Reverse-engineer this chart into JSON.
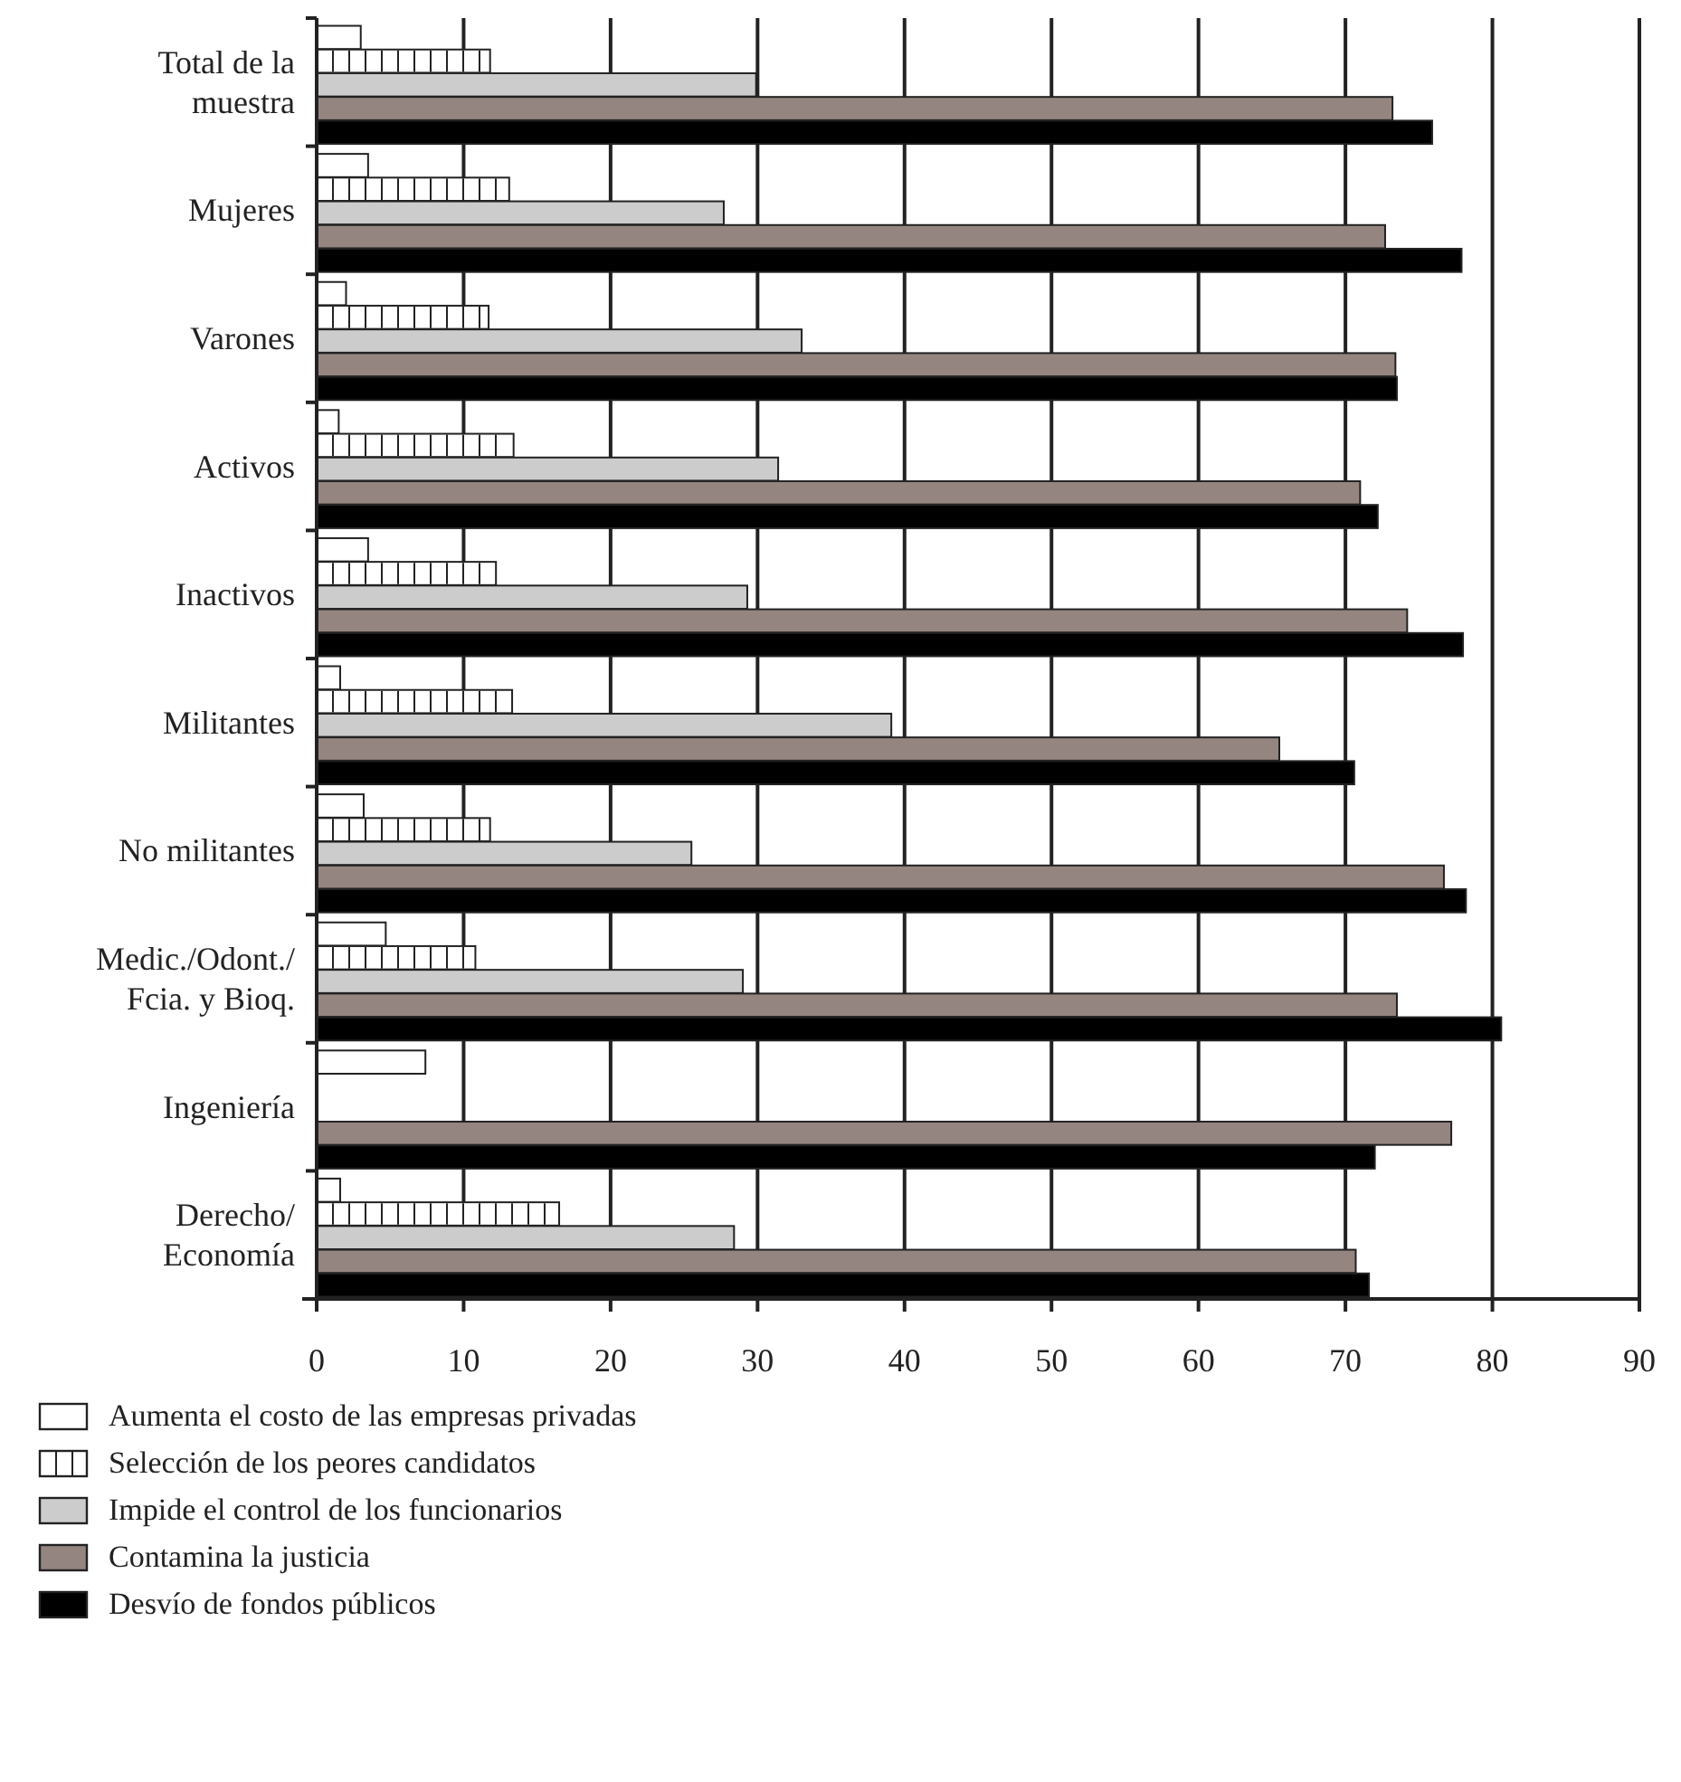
{
  "chart_data": {
    "type": "bar",
    "orientation": "horizontal",
    "categories": [
      "Total de la\nmuestra",
      "Mujeres",
      "Varones",
      "Activos",
      "Inactivos",
      "Militantes",
      "No militantes",
      "Medic./Odont./\nFcia. y Bioq.",
      "Ingeniería",
      "Derecho/\nEconomía"
    ],
    "series": [
      {
        "name": "Aumenta el costo de las empresas privadas",
        "color": "#ffffff",
        "values": [
          3.0,
          3.5,
          2.0,
          1.5,
          3.5,
          1.6,
          3.2,
          4.7,
          7.4,
          1.6
        ]
      },
      {
        "name": "Selección de los peores candidatos",
        "color": "#ffffff",
        "values": [
          11.8,
          13.1,
          11.7,
          13.4,
          12.2,
          13.3,
          11.8,
          10.8,
          null,
          16.5
        ]
      },
      {
        "name": "Impide el control de los funcionarios",
        "color": "#cccccc",
        "values": [
          29.9,
          27.7,
          33.0,
          31.4,
          29.3,
          39.1,
          25.5,
          29.0,
          null,
          28.4
        ]
      },
      {
        "name": "Contamina la justicia",
        "color": "#958580",
        "values": [
          73.2,
          72.7,
          73.4,
          71.0,
          74.2,
          65.5,
          76.7,
          73.5,
          77.2,
          70.7
        ]
      },
      {
        "name": "Desvío de fondos públicos",
        "color": "#000000",
        "values": [
          75.9,
          77.9,
          73.5,
          72.2,
          78.0,
          70.6,
          78.2,
          80.6,
          72.0,
          71.6
        ]
      }
    ],
    "xlim": [
      0,
      90
    ],
    "xticks": [
      0,
      10,
      20,
      30,
      40,
      50,
      60,
      70,
      80,
      90
    ],
    "grid": "x",
    "legend": "bottom"
  }
}
